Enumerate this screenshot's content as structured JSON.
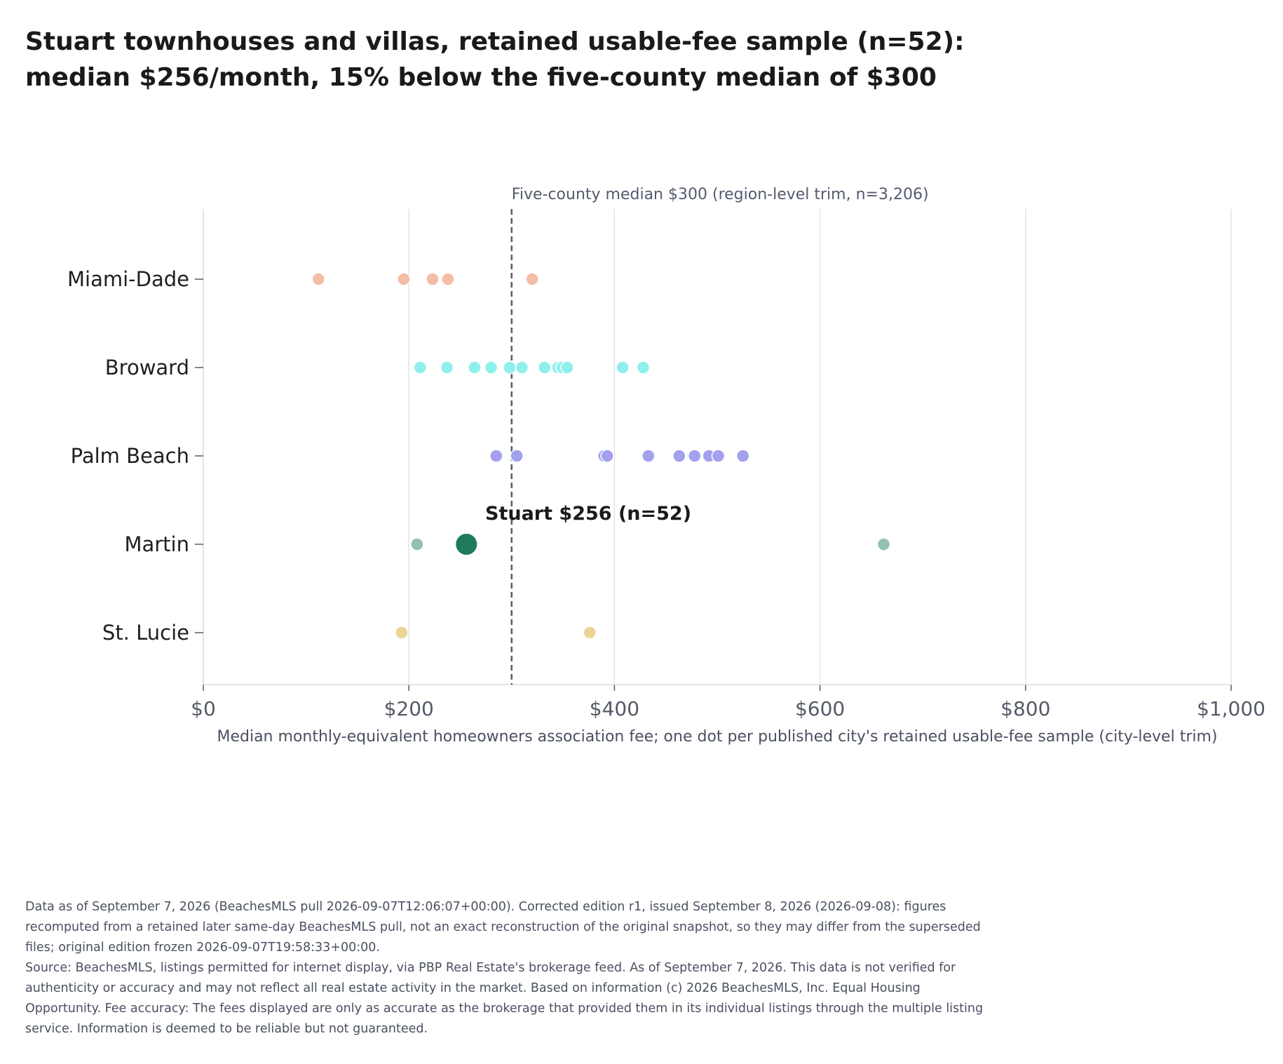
{
  "title": {
    "line1": "Stuart townhouses and villas, retained usable-fee sample (n=52):",
    "line2": "median $256/month, 15% below the five-county median of $300"
  },
  "chart_data": {
    "type": "scatter",
    "title": "Stuart townhouses and villas, retained usable-fee sample (n=52): median $256/month, 15% below the five-county median of $300",
    "xlabel": "Median monthly-equivalent homeowners association fee; one dot per published city's retained usable-fee sample (city-level trim)",
    "ylabel": "",
    "xlim": [
      0,
      1000
    ],
    "x_ticks": [
      0,
      200,
      400,
      600,
      800,
      1000
    ],
    "x_tick_labels": [
      "$0",
      "$200",
      "$400",
      "$600",
      "$800",
      "$1,000"
    ],
    "grid": "vertical",
    "categories": [
      "Miami-Dade",
      "Broward",
      "Palm Beach",
      "Martin",
      "St. Lucie"
    ],
    "series": [
      {
        "category": "Miami-Dade",
        "color": "#f5bca6",
        "values": [
          112,
          195,
          223,
          238,
          320
        ]
      },
      {
        "category": "Broward",
        "color": "#8ff0eb",
        "values": [
          211,
          237,
          264,
          280,
          298,
          310,
          332,
          345,
          349,
          354,
          408,
          428
        ]
      },
      {
        "category": "Palm Beach",
        "color": "#a3a0ee",
        "values": [
          285,
          305,
          390,
          393,
          433,
          463,
          478,
          492,
          501,
          525
        ]
      },
      {
        "category": "Martin",
        "color": "#93c0b2",
        "values": [
          208,
          662
        ]
      },
      {
        "category": "St. Lucie",
        "color": "#ebd494",
        "values": [
          193,
          376
        ]
      }
    ],
    "highlight": {
      "category": "Martin",
      "value": 256,
      "color": "#1e7a5b",
      "label": "Stuart $256 (n=52)"
    },
    "reference_line": {
      "value": 300,
      "label": "Five-county median $300 (region-level trim, n=3,206)"
    }
  },
  "footnote": {
    "line1": "Data as of September 7, 2026 (BeachesMLS pull 2026-09-07T12:06:07+00:00). Corrected edition r1, issued September 8, 2026 (2026-09-08): figures recomputed from a retained later same-day BeachesMLS pull, not an exact reconstruction of the original snapshot, so they may differ from the superseded files; original edition frozen 2026-09-07T19:58:33+00:00.",
    "line2": "Source: BeachesMLS, listings permitted for internet display, via PBP Real Estate's brokerage feed. As of September 7, 2026. This data is not verified for authenticity or accuracy and may not reflect all real estate activity in the market. Based on information (c) 2026 BeachesMLS, Inc. Equal Housing Opportunity. Fee accuracy: The fees displayed are only as accurate as the brokerage that provided them in its individual listings through the multiple listing service. Information is deemed to be reliable but not guaranteed."
  }
}
